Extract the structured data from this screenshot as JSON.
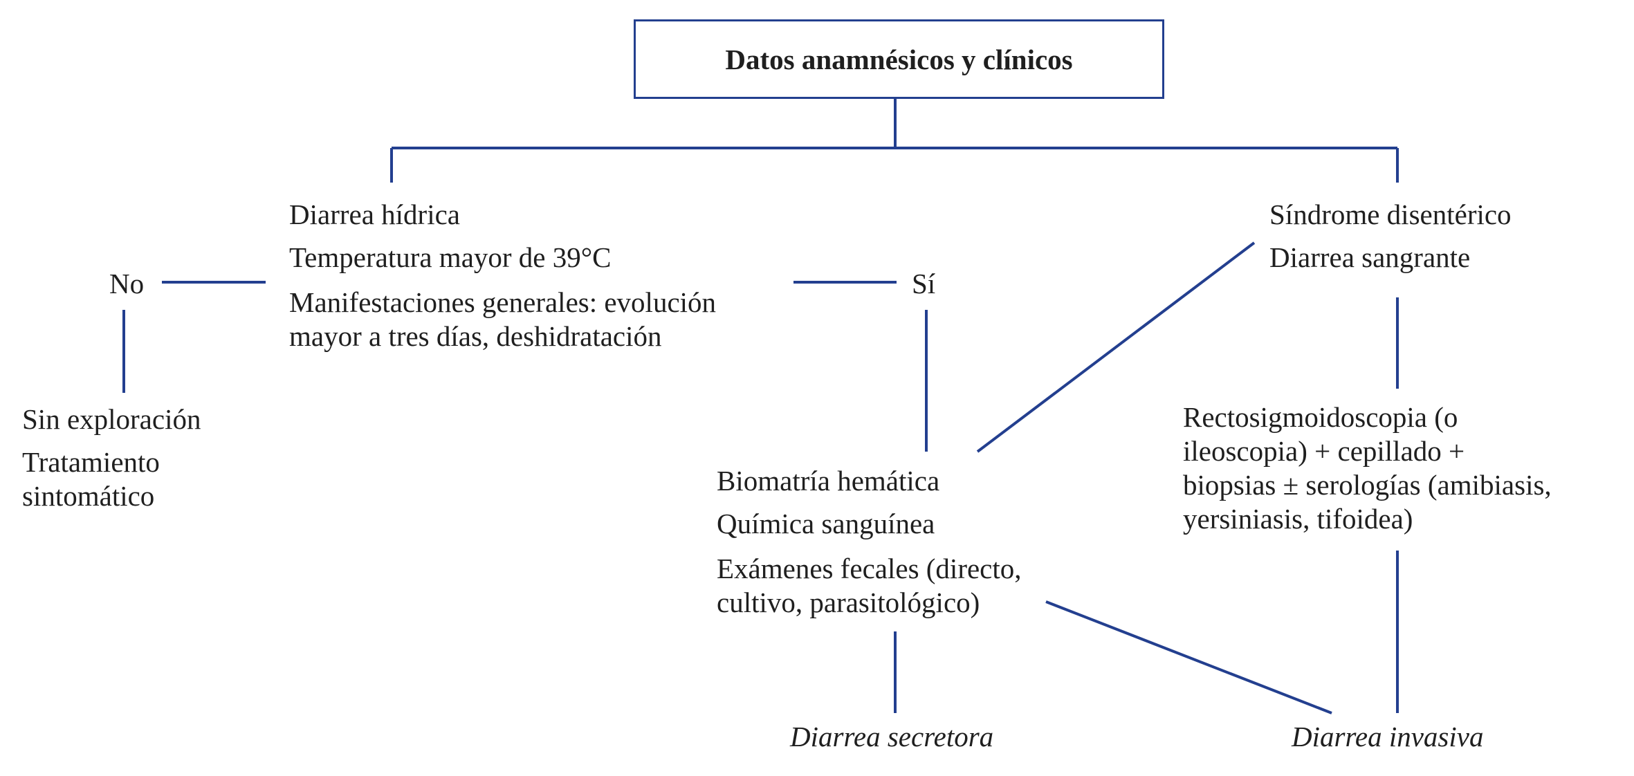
{
  "colors": {
    "line": "#233f8f",
    "text": "#1f1f1f",
    "background": "#ffffff"
  },
  "title": "Datos anamnésicos y clínicos",
  "left_branch": {
    "lines": [
      "Diarrea hídrica",
      "Temperatura mayor de 39°C",
      "Manifestaciones generales: evolución",
      "mayor a tres días, deshidratación"
    ]
  },
  "right_branch": {
    "lines": [
      "Síndrome disentérico",
      "Diarrea sangrante"
    ]
  },
  "no_label": "No",
  "si_label": "Sí",
  "no_outcome": {
    "lines": [
      "Sin exploración",
      "Tratamiento",
      "sintomático"
    ]
  },
  "lab_tests": {
    "lines": [
      "Biomatría hemática",
      "Química sanguínea",
      "Exámenes fecales (directo,",
      "cultivo, parasitológico)"
    ]
  },
  "endoscopy": {
    "lines": [
      "Rectosigmoidoscopia (o",
      "ileoscopia) + cepillado +",
      "biopsias ± serologías (amibiasis,",
      "yersiniasis, tifoidea)"
    ]
  },
  "outcomes": {
    "secretory": "Diarrea secretora",
    "invasive": "Diarrea invasiva"
  }
}
